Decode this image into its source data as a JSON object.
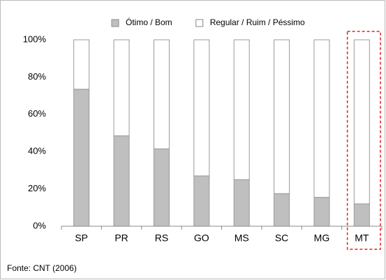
{
  "chart_data": {
    "type": "bar",
    "stacked": true,
    "categories": [
      "SP",
      "PR",
      "RS",
      "GO",
      "MS",
      "SC",
      "MG",
      "MT"
    ],
    "series": [
      {
        "name": "Ótimo / Bom",
        "color": "#bfbfbf",
        "values": [
          73.5,
          48.5,
          41.5,
          27,
          25,
          17.5,
          15.5,
          12
        ]
      },
      {
        "name": "Regular / Ruim / Péssimo",
        "color": "#ffffff",
        "values": [
          26.5,
          51.5,
          58.5,
          73,
          75,
          82.5,
          84.5,
          88
        ]
      }
    ],
    "ylim": [
      0,
      100
    ],
    "yticks": [
      {
        "value": 0,
        "label": "0%"
      },
      {
        "value": 20,
        "label": "20%"
      },
      {
        "value": 40,
        "label": "40%"
      },
      {
        "value": 60,
        "label": "60%"
      },
      {
        "value": 80,
        "label": "80%"
      },
      {
        "value": 100,
        "label": "100%"
      }
    ],
    "legend": "top",
    "source": "Fonte: CNT (2006)"
  }
}
